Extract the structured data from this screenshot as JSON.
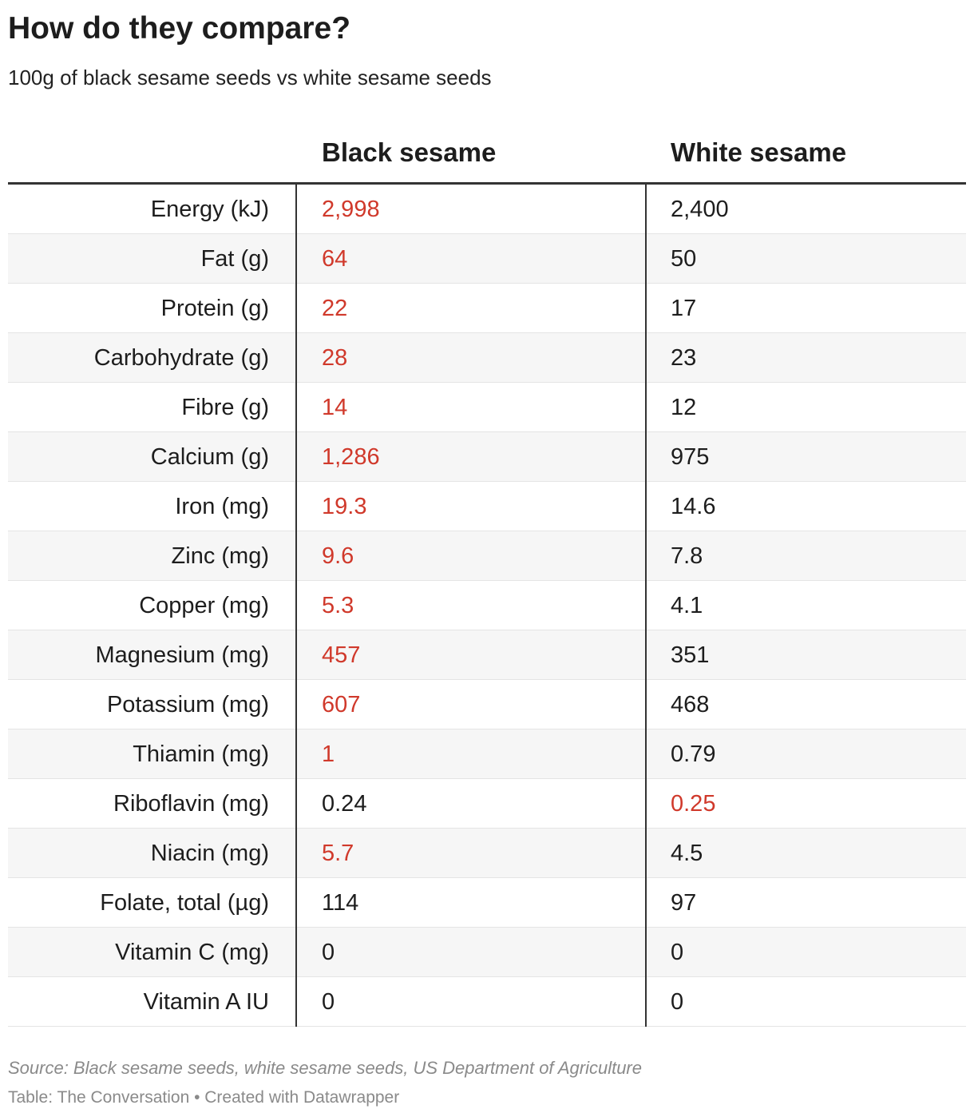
{
  "header": {
    "title": "How do they compare?",
    "subtitle": "100g of black sesame seeds vs white sesame seeds"
  },
  "table": {
    "columns": [
      "Black sesame",
      "White sesame"
    ],
    "highlight_color": "#d0392b",
    "rows": [
      [
        "Energy (kJ)",
        "2,998",
        "2,400"
      ],
      [
        "Fat (g)",
        "64",
        "50"
      ],
      [
        "Protein (g)",
        "22",
        "17"
      ],
      [
        "Carbohydrate (g)",
        "28",
        "23"
      ],
      [
        "Fibre (g)",
        "14",
        "12"
      ],
      [
        "Calcium (g)",
        "1,286",
        "975"
      ],
      [
        "Iron (mg)",
        "19.3",
        "14.6"
      ],
      [
        "Zinc (mg)",
        "9.6",
        "7.8"
      ],
      [
        "Copper (mg)",
        "5.3",
        "4.1"
      ],
      [
        "Magnesium (mg)",
        "457",
        "351"
      ],
      [
        "Potassium (mg)",
        "607",
        "468"
      ],
      [
        "Thiamin (mg)",
        "1",
        "0.79"
      ],
      [
        "Riboflavin (mg)",
        "0.24",
        "0.25"
      ],
      [
        "Niacin (mg)",
        "5.7",
        "4.5"
      ],
      [
        "Folate, total (µg)",
        "114",
        "97"
      ],
      [
        "Vitamin C (mg)",
        "0",
        "0"
      ],
      [
        "Vitamin A IU",
        "0",
        "0"
      ]
    ],
    "highlighted": [
      1,
      1,
      1,
      1,
      1,
      1,
      1,
      1,
      1,
      1,
      1,
      1,
      2,
      1,
      null,
      null,
      null
    ]
  },
  "footer": {
    "source": "Source: Black sesame seeds, white sesame seeds, US Department of Agriculture",
    "credit": "Table: The Conversation • Created with Datawrapper"
  }
}
